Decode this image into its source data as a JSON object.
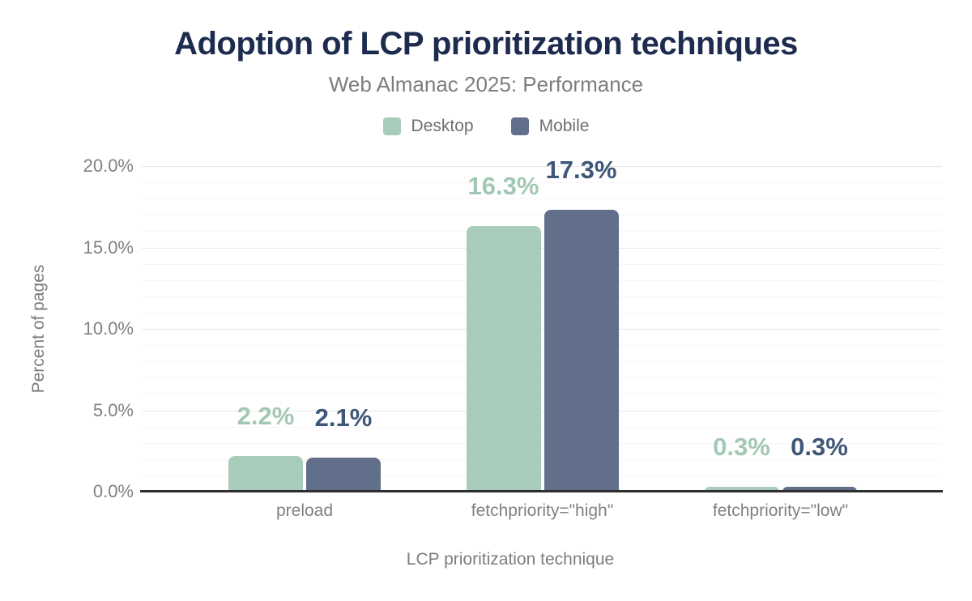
{
  "header": {
    "title": "Adoption of LCP prioritization techniques",
    "subtitle": "Web Almanac 2025: Performance"
  },
  "colors": {
    "title_text": "#1d2b4f",
    "muted_text": "#7d7d7d",
    "tick_text": "#818181",
    "grid_minor": "#f6f6f6",
    "grid_major": "#e8e8e8",
    "axis_line": "#2e2e2e",
    "desktop_bar": "#a9cbba",
    "desktop_label": "#a2c8b4",
    "mobile_bar": "#626f8b",
    "mobile_label": "#3e5779"
  },
  "chart_data": {
    "type": "bar",
    "title": "Adoption of LCP prioritization techniques",
    "subtitle": "Web Almanac 2025: Performance",
    "categories": [
      "preload",
      "fetchpriority=\"high\"",
      "fetchpriority=\"low\""
    ],
    "series": [
      {
        "name": "Desktop",
        "values": [
          2.2,
          16.3,
          0.3
        ],
        "value_labels": [
          "2.2%",
          "16.3%",
          "0.3%"
        ],
        "color": "#a9cbba",
        "label_color": "#a2c8b4"
      },
      {
        "name": "Mobile",
        "values": [
          2.1,
          17.3,
          0.3
        ],
        "value_labels": [
          "2.1%",
          "17.3%",
          "0.3%"
        ],
        "color": "#626f8b",
        "label_color": "#3e5779"
      }
    ],
    "xlabel": "LCP prioritization technique",
    "ylabel": "Percent of pages",
    "ylim": [
      0,
      20
    ],
    "yticks": [
      0,
      5,
      10,
      15,
      20
    ],
    "ytick_labels": [
      "0.0%",
      "5.0%",
      "10.0%",
      "15.0%",
      "20.0%"
    ],
    "grid": "horizontal minor lines every 1%, major every 5%, on",
    "legend_position": "top-center"
  }
}
